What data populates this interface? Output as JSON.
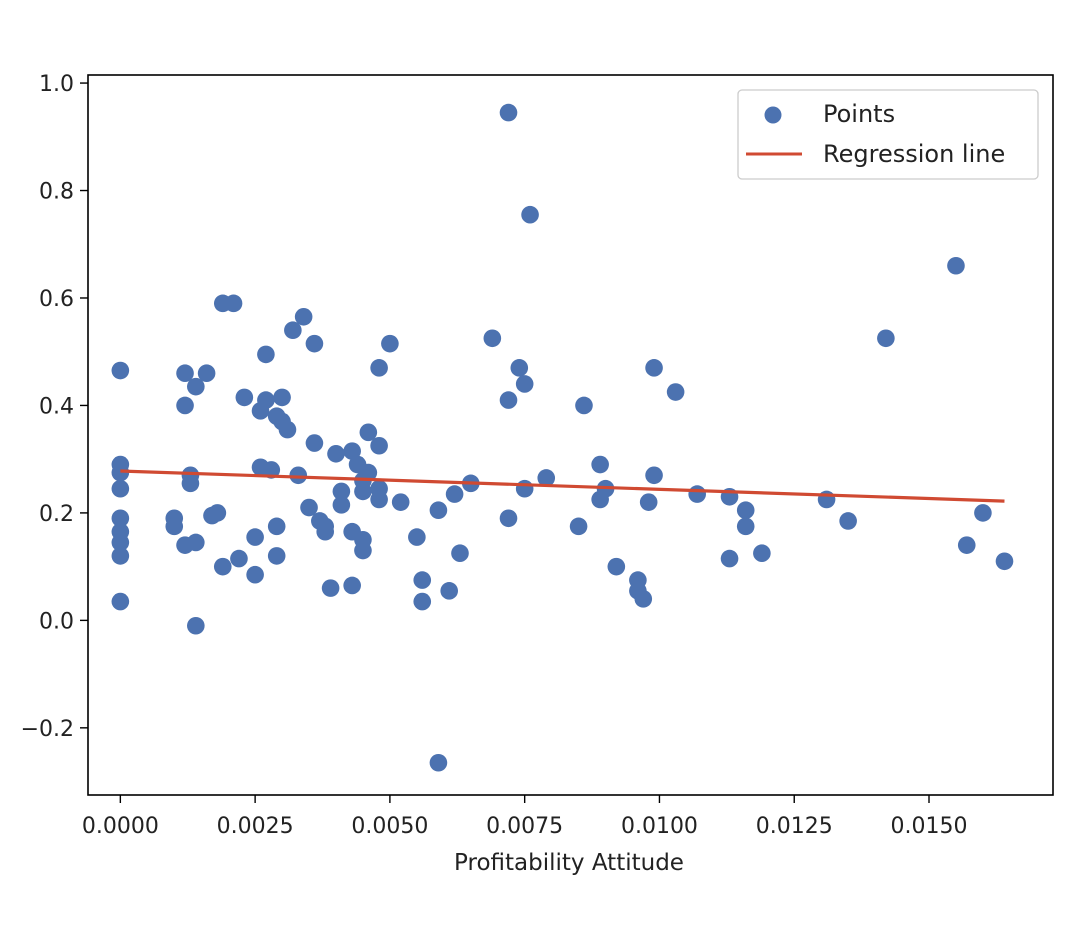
{
  "chart_data": {
    "type": "scatter",
    "title": "",
    "xlabel": "Profitability Attitude",
    "ylabel": "",
    "xlim": [
      -0.0006,
      0.0173
    ],
    "ylim": [
      -0.325,
      1.015
    ],
    "grid": false,
    "legend_position": "top-right",
    "x_ticks": [
      {
        "value": 0.0,
        "label": "0.0000"
      },
      {
        "value": 0.0025,
        "label": "0.0025"
      },
      {
        "value": 0.005,
        "label": "0.0050"
      },
      {
        "value": 0.0075,
        "label": "0.0075"
      },
      {
        "value": 0.01,
        "label": "0.0100"
      },
      {
        "value": 0.0125,
        "label": "0.0125"
      },
      {
        "value": 0.015,
        "label": "0.0150"
      }
    ],
    "y_ticks": [
      {
        "value": -0.2,
        "label": "−0.2"
      },
      {
        "value": 0.0,
        "label": "0.0"
      },
      {
        "value": 0.2,
        "label": "0.2"
      },
      {
        "value": 0.4,
        "label": "0.4"
      },
      {
        "value": 0.6,
        "label": "0.6"
      },
      {
        "value": 0.8,
        "label": "0.8"
      },
      {
        "value": 1.0,
        "label": "1.0"
      }
    ],
    "series": [
      {
        "name": "Points",
        "kind": "scatter",
        "color": "#4c72b0",
        "points": [
          [
            0.0,
            0.465
          ],
          [
            0.0,
            0.29
          ],
          [
            0.0,
            0.275
          ],
          [
            0.0,
            0.245
          ],
          [
            0.0,
            0.19
          ],
          [
            0.0,
            0.165
          ],
          [
            0.0,
            0.145
          ],
          [
            0.0,
            0.12
          ],
          [
            0.0,
            0.035
          ],
          [
            0.001,
            0.19
          ],
          [
            0.001,
            0.175
          ],
          [
            0.0012,
            0.46
          ],
          [
            0.0012,
            0.4
          ],
          [
            0.0013,
            0.27
          ],
          [
            0.0013,
            0.255
          ],
          [
            0.0012,
            0.14
          ],
          [
            0.0014,
            0.145
          ],
          [
            0.0014,
            -0.01
          ],
          [
            0.0014,
            0.435
          ],
          [
            0.0016,
            0.46
          ],
          [
            0.0017,
            0.195
          ],
          [
            0.0018,
            0.2
          ],
          [
            0.0019,
            0.59
          ],
          [
            0.0021,
            0.59
          ],
          [
            0.0019,
            0.1
          ],
          [
            0.0022,
            0.115
          ],
          [
            0.0023,
            0.415
          ],
          [
            0.0025,
            0.155
          ],
          [
            0.0025,
            0.085
          ],
          [
            0.0026,
            0.39
          ],
          [
            0.0027,
            0.41
          ],
          [
            0.0027,
            0.495
          ],
          [
            0.0026,
            0.285
          ],
          [
            0.0028,
            0.28
          ],
          [
            0.0029,
            0.38
          ],
          [
            0.003,
            0.415
          ],
          [
            0.003,
            0.37
          ],
          [
            0.0031,
            0.355
          ],
          [
            0.0032,
            0.54
          ],
          [
            0.0034,
            0.565
          ],
          [
            0.0033,
            0.27
          ],
          [
            0.0029,
            0.175
          ],
          [
            0.0029,
            0.12
          ],
          [
            0.0035,
            0.21
          ],
          [
            0.0036,
            0.515
          ],
          [
            0.0036,
            0.33
          ],
          [
            0.0037,
            0.185
          ],
          [
            0.0038,
            0.165
          ],
          [
            0.0038,
            0.175
          ],
          [
            0.0039,
            0.06
          ],
          [
            0.004,
            0.31
          ],
          [
            0.0041,
            0.24
          ],
          [
            0.0041,
            0.215
          ],
          [
            0.0043,
            0.315
          ],
          [
            0.0043,
            0.165
          ],
          [
            0.0043,
            0.065
          ],
          [
            0.0044,
            0.29
          ],
          [
            0.0045,
            0.26
          ],
          [
            0.0045,
            0.24
          ],
          [
            0.0045,
            0.15
          ],
          [
            0.0045,
            0.13
          ],
          [
            0.0046,
            0.35
          ],
          [
            0.0046,
            0.275
          ],
          [
            0.0048,
            0.47
          ],
          [
            0.0048,
            0.325
          ],
          [
            0.0048,
            0.245
          ],
          [
            0.0048,
            0.225
          ],
          [
            0.005,
            0.515
          ],
          [
            0.0052,
            0.22
          ],
          [
            0.0055,
            0.155
          ],
          [
            0.0056,
            0.075
          ],
          [
            0.0056,
            0.035
          ],
          [
            0.0059,
            0.205
          ],
          [
            0.0059,
            -0.265
          ],
          [
            0.0061,
            0.055
          ],
          [
            0.0062,
            0.235
          ],
          [
            0.0063,
            0.125
          ],
          [
            0.0065,
            0.255
          ],
          [
            0.0069,
            0.525
          ],
          [
            0.0072,
            0.945
          ],
          [
            0.0072,
            0.41
          ],
          [
            0.0072,
            0.19
          ],
          [
            0.0074,
            0.47
          ],
          [
            0.0075,
            0.44
          ],
          [
            0.0075,
            0.245
          ],
          [
            0.0076,
            0.755
          ],
          [
            0.0079,
            0.265
          ],
          [
            0.0085,
            0.175
          ],
          [
            0.0086,
            0.4
          ],
          [
            0.0089,
            0.29
          ],
          [
            0.0089,
            0.225
          ],
          [
            0.009,
            0.245
          ],
          [
            0.0092,
            0.1
          ],
          [
            0.0096,
            0.075
          ],
          [
            0.0096,
            0.055
          ],
          [
            0.0097,
            0.04
          ],
          [
            0.0098,
            0.22
          ],
          [
            0.0099,
            0.27
          ],
          [
            0.0099,
            0.47
          ],
          [
            0.0103,
            0.425
          ],
          [
            0.0107,
            0.235
          ],
          [
            0.0113,
            0.23
          ],
          [
            0.0113,
            0.115
          ],
          [
            0.0116,
            0.205
          ],
          [
            0.0116,
            0.175
          ],
          [
            0.0119,
            0.125
          ],
          [
            0.0131,
            0.225
          ],
          [
            0.0135,
            0.185
          ],
          [
            0.0142,
            0.525
          ],
          [
            0.0155,
            0.66
          ],
          [
            0.0157,
            0.14
          ],
          [
            0.016,
            0.2
          ],
          [
            0.0164,
            0.11
          ]
        ]
      },
      {
        "name": "Regression line",
        "kind": "line",
        "color": "#d04a32",
        "points": [
          [
            0.0,
            0.278
          ],
          [
            0.0164,
            0.222
          ]
        ]
      }
    ]
  }
}
